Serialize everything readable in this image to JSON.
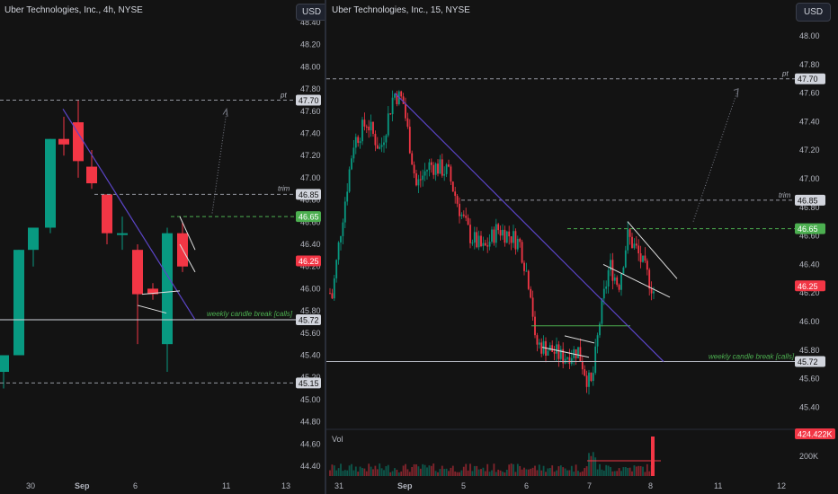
{
  "left_chart": {
    "title": "Uber Technologies, Inc., 4h, NYSE",
    "currency": "USD",
    "price_ticks": [
      "48.40",
      "48.20",
      "48.00",
      "47.80",
      "47.60",
      "47.40",
      "47.20",
      "47.00",
      "46.80",
      "46.60",
      "46.40",
      "46.20",
      "46.00",
      "45.80",
      "45.60",
      "45.40",
      "45.20",
      "45.00",
      "44.80",
      "44.60",
      "44.40"
    ],
    "time_labels": [
      "30",
      "Sep",
      "6",
      "11",
      "13"
    ],
    "labels": {
      "pt_tag": "pt",
      "pt_value": "47.70",
      "trim_tag": "trim",
      "trim_value": "46.85",
      "entry_value": "46.65",
      "last_price": "46.25",
      "weekly_text": "weekly candle break [calls]",
      "weekly_value": "45.72",
      "low_value": "45.15"
    }
  },
  "right_chart": {
    "title": "Uber Technologies, Inc., 15, NYSE",
    "currency": "USD",
    "price_ticks": [
      "48.00",
      "47.80",
      "47.60",
      "47.40",
      "47.20",
      "47.00",
      "46.80",
      "46.60",
      "46.40",
      "46.20",
      "46.00",
      "45.80",
      "45.60",
      "45.40"
    ],
    "time_labels": [
      "31",
      "Sep",
      "5",
      "6",
      "7",
      "8",
      "11",
      "12"
    ],
    "labels": {
      "pt_tag": "pt",
      "pt_value": "47.70",
      "trim_tag": "trim",
      "trim_value": "46.85",
      "entry_value": "46.65",
      "last_price": "46.25",
      "weekly_text": "weekly candle break [calls]",
      "weekly_value": "45.72"
    },
    "volume": {
      "label": "Vol",
      "value": "424.422K",
      "tick": "200K"
    }
  },
  "colors": {
    "up": "#089981",
    "down": "#f23645",
    "level": "#787b86",
    "entry": "#4caf50",
    "trend": "#5b45c7"
  }
}
